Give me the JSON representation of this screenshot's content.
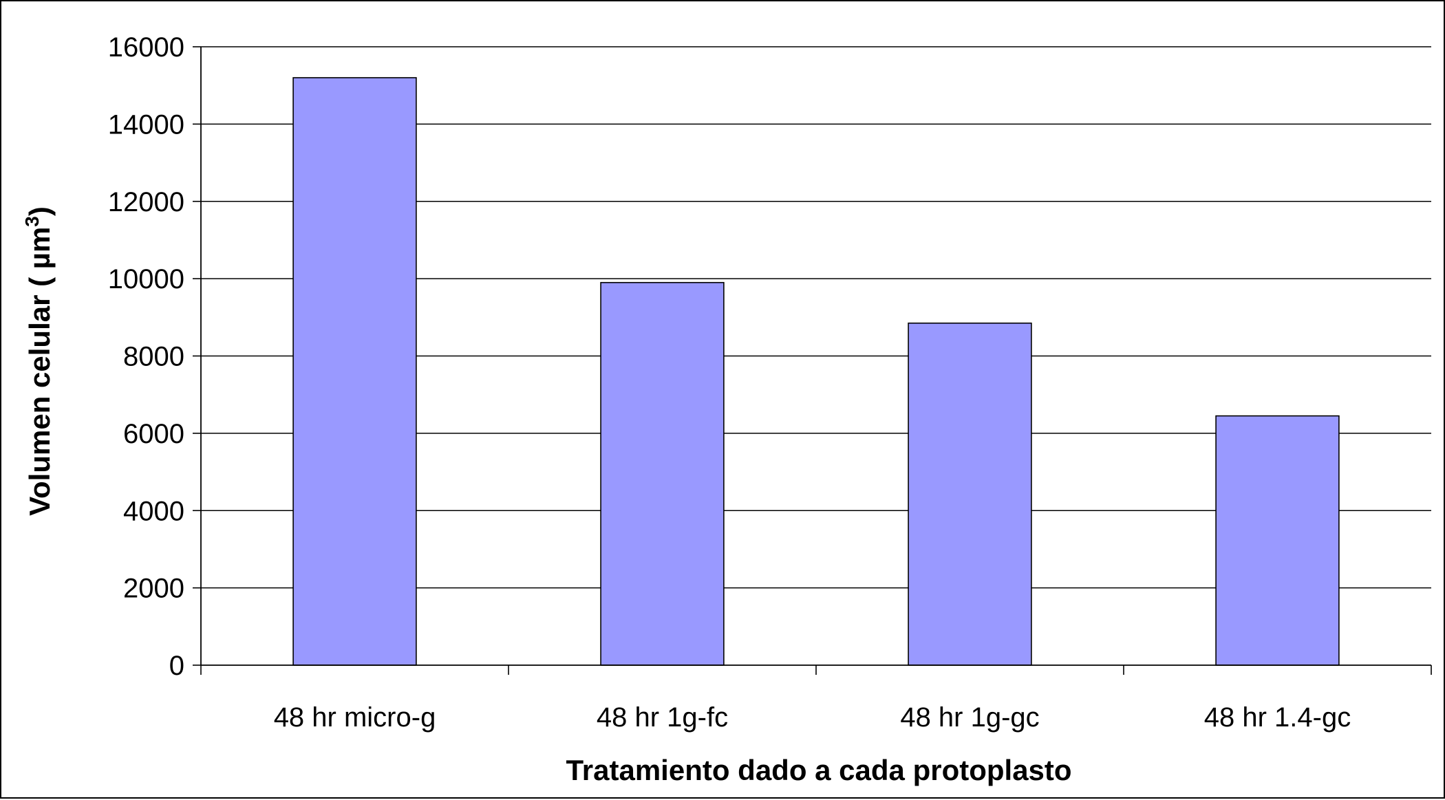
{
  "chart_data": {
    "type": "bar",
    "title": "",
    "xlabel": "Tratamiento dado a cada protoplasto",
    "ylabel": {
      "text": "Volumen celular (  µm",
      "superscript": "3",
      "suffix": ")"
    },
    "categories": [
      "48 hr micro-g",
      "48 hr 1g-fc",
      "48 hr 1g-gc",
      "48 hr 1.4-gc"
    ],
    "series": [
      {
        "values": [
          15200,
          9900,
          8850,
          6450
        ],
        "color": "#9999ff"
      }
    ],
    "ylim": [
      0,
      16000
    ],
    "yticks": [
      "0",
      "2000",
      "4000",
      "6000",
      "8000",
      "10000",
      "12000",
      "14000",
      "16000"
    ],
    "grid": true,
    "legend": "none",
    "colors": {
      "bar": "#9999ff",
      "bar_edge": "#000000",
      "grid": "#000000",
      "background": "#ffffff"
    }
  }
}
